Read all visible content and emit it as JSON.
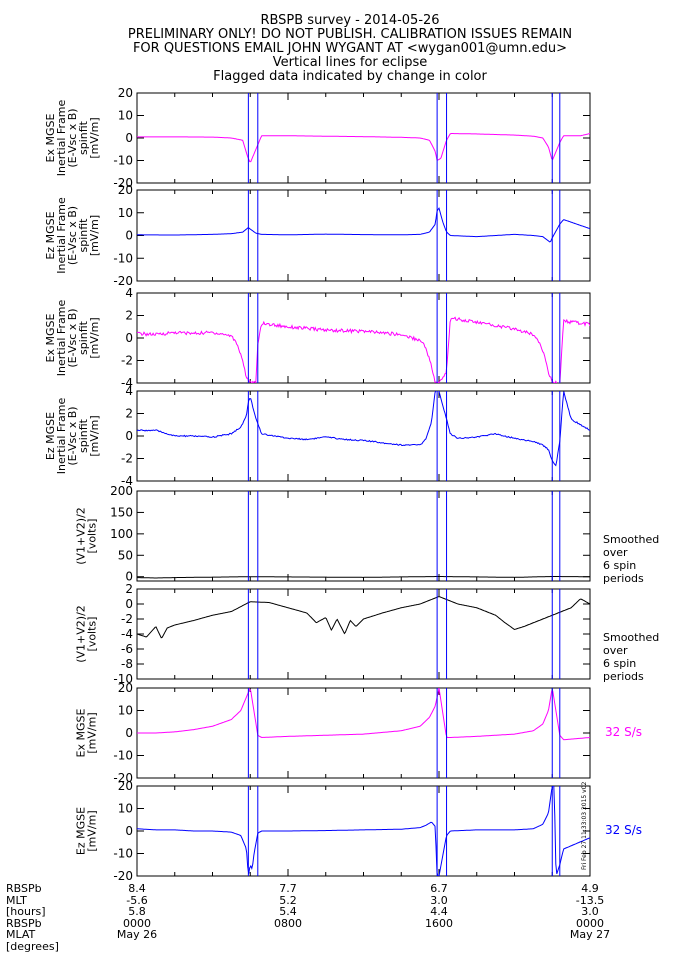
{
  "header": {
    "lines": [
      "RBSPB survey - 2014-05-26",
      "PRELIMINARY ONLY! DO NOT PUBLISH. CALIBRATION ISSUES REMAIN",
      "FOR QUESTIONS EMAIL JOHN WYGANT AT <wygan001@umn.edu>",
      "Vertical lines for eclipse",
      "Flagged data indicated by change in color"
    ]
  },
  "colors": {
    "magenta": "#ff00ff",
    "blue": "#0000ff",
    "black": "#000000",
    "eclipse": "#0000ff"
  },
  "eclipse_hours": [
    5.9,
    6.4,
    15.9,
    16.4,
    22.0,
    22.4
  ],
  "chart_data": [
    {
      "type": "line",
      "ylabel": [
        "Ex MGSE",
        "Inertial Frame",
        "(E-Vsc x B)",
        "spinfit",
        "[mV/m]"
      ],
      "ylim": [
        -20,
        20
      ],
      "yticks": [
        "20",
        "10",
        "0",
        "-10",
        "-20"
      ],
      "ytick_values": [
        20,
        10,
        0,
        -10,
        -20
      ],
      "color": "magenta",
      "series": [
        {
          "x": [
            0,
            2,
            4,
            5,
            5.6,
            5.85,
            6,
            6.4,
            6.6,
            8,
            10,
            12,
            14,
            15,
            15.5,
            15.8,
            15.9,
            16.1,
            16.4,
            16.6,
            18,
            20,
            21,
            21.5,
            21.8,
            22,
            22.4,
            22.6,
            23.5,
            24
          ],
          "values": [
            0.5,
            0.5,
            0.4,
            0,
            -1,
            -8,
            -11,
            -3,
            1,
            1,
            0.8,
            0.6,
            0.3,
            0,
            -1,
            -6,
            -10,
            -9,
            -1,
            2,
            1.8,
            1.3,
            0.8,
            0,
            -4,
            -10,
            -2,
            1,
            1,
            2
          ]
        }
      ]
    },
    {
      "type": "line",
      "ylabel": [
        "Ez MGSE",
        "Inertial Frame",
        "(E-Vsc x B)",
        "spinfit",
        "[mV/m]"
      ],
      "ylim": [
        -20,
        20
      ],
      "yticks": [
        "20",
        "10",
        "0",
        "-10",
        "-20"
      ],
      "ytick_values": [
        20,
        10,
        0,
        -10,
        -20
      ],
      "color": "blue",
      "series": [
        {
          "x": [
            0,
            2,
            4,
            5,
            5.6,
            5.9,
            6,
            6.3,
            6.6,
            8,
            10,
            12,
            14,
            15,
            15.5,
            15.8,
            15.9,
            16,
            16.2,
            16.4,
            16.6,
            18,
            20,
            21,
            21.5,
            21.9,
            22,
            22.4,
            22.6,
            24
          ],
          "values": [
            0.3,
            0.2,
            0.5,
            0.8,
            1.5,
            3.5,
            2.8,
            1,
            0.5,
            0.3,
            0.6,
            0.4,
            0.3,
            0.5,
            1.5,
            5,
            11,
            12,
            6,
            1.5,
            0,
            -0.5,
            0.5,
            0,
            -0.5,
            -3,
            -1,
            5,
            7,
            3
          ]
        }
      ]
    },
    {
      "type": "line",
      "ylabel": [
        "Ex MGSE",
        "Inertial Frame",
        "(E-Vsc x B)",
        "spinfit",
        "[mV/m]"
      ],
      "ylim": [
        -4,
        4
      ],
      "yticks": [
        "4",
        "2",
        "0",
        "-2",
        "-4"
      ],
      "ytick_values": [
        4,
        2,
        0,
        -2,
        -4
      ],
      "color": "magenta",
      "noise": 0.15,
      "series": [
        {
          "x": [
            0,
            1,
            2,
            3,
            4,
            5,
            5.3,
            5.6,
            5.8,
            6,
            6.3,
            6.4,
            6.6,
            8,
            10,
            12,
            14,
            15,
            15.3,
            15.6,
            15.8,
            16,
            16.4,
            16.6,
            18,
            20,
            21,
            21.3,
            21.6,
            21.8,
            22,
            22.4,
            22.6,
            24
          ],
          "values": [
            0.4,
            0.3,
            0.5,
            0.4,
            0.5,
            0.2,
            -0.5,
            -2,
            -3.5,
            -4,
            -4,
            -0.5,
            1.3,
            1,
            0.7,
            0.6,
            0.3,
            -0.2,
            -0.8,
            -2.5,
            -4,
            -4,
            -3,
            1.8,
            1.4,
            0.8,
            0.3,
            -0.3,
            -1.5,
            -3,
            -4,
            -4,
            1.5,
            1.2
          ]
        }
      ]
    },
    {
      "type": "line",
      "ylabel": [
        "Ez MGSE",
        "Inertial Frame",
        "(E-Vsc x B)",
        "spinfit",
        "[mV/m]"
      ],
      "ylim": [
        -4,
        4
      ],
      "yticks": [
        "4",
        "2",
        "0",
        "-2",
        "-4"
      ],
      "ytick_values": [
        4,
        2,
        0,
        -2,
        -4
      ],
      "color": "blue",
      "noise": 0.06,
      "series": [
        {
          "x": [
            0,
            1,
            2,
            3,
            4,
            5,
            5.5,
            5.8,
            5.9,
            6,
            6.3,
            6.6,
            8,
            9,
            10,
            11,
            12,
            13,
            14,
            15,
            15.3,
            15.6,
            15.8,
            15.9,
            16,
            16.4,
            16.6,
            17,
            18,
            19,
            20,
            21,
            21.5,
            21.8,
            22,
            22.2,
            22.4,
            22.6,
            23,
            24
          ],
          "values": [
            0.5,
            0.5,
            0,
            0,
            -0.1,
            0.2,
            0.8,
            1.8,
            3,
            3.5,
            1.5,
            0.2,
            -0.2,
            -0.3,
            -0.1,
            -0.3,
            -0.4,
            -0.6,
            -0.8,
            -0.8,
            -0.3,
            1.2,
            4,
            4,
            4,
            1.5,
            0.2,
            -0.2,
            -0.1,
            0.2,
            -0.2,
            -0.5,
            -0.8,
            -1.2,
            -2.2,
            -2.6,
            -0.5,
            4,
            1.5,
            0.5
          ]
        }
      ]
    },
    {
      "type": "line",
      "ylabel": [
        "(V1+V2)/2",
        "[volts]"
      ],
      "ylim": [
        -10,
        200
      ],
      "yticks": [
        "200",
        "150",
        "100",
        "50",
        "0"
      ],
      "ytick_values": [
        200,
        150,
        100,
        50,
        0
      ],
      "color": "black",
      "note": [
        "Smoothed",
        "over",
        "6 spin",
        "periods"
      ],
      "series": [
        {
          "x": [
            0,
            1,
            2,
            4,
            6,
            8,
            10,
            12,
            14,
            16,
            18,
            20,
            22,
            24
          ],
          "values": [
            -2,
            -3,
            -2,
            -1,
            0,
            -0.5,
            -1,
            -1.5,
            -0.5,
            0.5,
            -0.5,
            -1.5,
            0.5,
            0
          ]
        }
      ]
    },
    {
      "type": "line",
      "ylabel": [
        "(V1+V2)/2",
        "[volts]"
      ],
      "ylim": [
        -10,
        2
      ],
      "yticks": [
        "2",
        "0",
        "-2",
        "-4",
        "-6",
        "-8",
        "-10"
      ],
      "ytick_values": [
        2,
        0,
        -2,
        -4,
        -6,
        -8,
        -10
      ],
      "color": "black",
      "note": [
        "Smoothed",
        "over",
        "6 spin",
        "periods"
      ],
      "series": [
        {
          "x": [
            0,
            0.5,
            1,
            1.3,
            1.6,
            2,
            2.5,
            3,
            4,
            5,
            6,
            7,
            8,
            9,
            9.5,
            10,
            10.3,
            10.6,
            11,
            11.3,
            11.6,
            12,
            12.5,
            13,
            14,
            15,
            16,
            17,
            18,
            19,
            19.5,
            20,
            20.5,
            21,
            22,
            23,
            23.5,
            24
          ],
          "values": [
            -4,
            -4.4,
            -3,
            -4.6,
            -3.2,
            -2.8,
            -2.5,
            -2.2,
            -1.5,
            -1,
            0.3,
            0.2,
            -0.5,
            -1.2,
            -2.5,
            -1.8,
            -3.5,
            -2,
            -4,
            -2.2,
            -3,
            -2,
            -1.6,
            -1.2,
            -0.5,
            0,
            1,
            0,
            -0.5,
            -1.5,
            -2.5,
            -3.4,
            -3,
            -2.5,
            -1.5,
            -0.5,
            0.7,
            0
          ]
        }
      ]
    },
    {
      "type": "line",
      "ylabel": [
        "Ex MGSE",
        "[mV/m]"
      ],
      "ylim": [
        -20,
        20
      ],
      "yticks": [
        "20",
        "10",
        "0",
        "-10",
        "-20"
      ],
      "ytick_values": [
        20,
        10,
        0,
        -10,
        -20
      ],
      "color": "magenta",
      "rate_label": "32 S/s",
      "series": [
        {
          "x": [
            0,
            1,
            2,
            3,
            4,
            5,
            5.5,
            5.8,
            6,
            6.4,
            6.6,
            8,
            10,
            12,
            14,
            15,
            15.5,
            15.8,
            16,
            16.4,
            16.6,
            18,
            20,
            21,
            21.5,
            21.8,
            22,
            22.4,
            22.6,
            24
          ],
          "values": [
            0,
            0,
            0.5,
            1.5,
            3,
            6,
            10,
            16,
            20,
            -1,
            -2,
            -1.5,
            -1,
            -0.5,
            1,
            3,
            7,
            12,
            20,
            -2,
            -2,
            -1.5,
            -0.5,
            1,
            4,
            10,
            20,
            -1,
            -3,
            -2
          ]
        }
      ]
    },
    {
      "type": "line",
      "ylabel": [
        "Ez MGSE",
        "[mV/m]"
      ],
      "ylim": [
        -20,
        20
      ],
      "yticks": [
        "20",
        "10",
        "0",
        "-10",
        "-20"
      ],
      "ytick_values": [
        20,
        10,
        0,
        -10,
        -20
      ],
      "color": "blue",
      "rate_label": "32 S/s",
      "series": [
        {
          "x": [
            0,
            1,
            2,
            3,
            4,
            5,
            5.5,
            5.8,
            5.9,
            6,
            6.1,
            6.2,
            6.4,
            6.6,
            8,
            10,
            12,
            14,
            15,
            15.3,
            15.6,
            15.8,
            15.9,
            16,
            16.4,
            16.6,
            18,
            20,
            21,
            21.5,
            21.8,
            22,
            22.1,
            22.2,
            22.4,
            22.6,
            24
          ],
          "values": [
            1,
            0.5,
            0.5,
            0,
            0,
            -0.5,
            -2,
            -8,
            -20,
            -15,
            -17,
            -10,
            -1,
            0,
            0,
            0.2,
            0.5,
            0.8,
            1.5,
            2.5,
            4,
            2,
            -20,
            -20,
            -2,
            0,
            0.5,
            0.5,
            1,
            3,
            8,
            20,
            20,
            -20,
            -15,
            -8,
            -3
          ]
        }
      ]
    }
  ],
  "ephemeris": {
    "row_labels": [
      "RBSPb",
      "MLT",
      "[hours]",
      "RBSPb",
      "MLAT",
      "[degrees]"
    ],
    "columns": [
      {
        "hour": 0,
        "values": [
          "8.4",
          "-5.6",
          "5.8",
          "0000",
          "May 26"
        ]
      },
      {
        "hour": 8,
        "values": [
          "7.7",
          "5.2",
          "5.4",
          "0800",
          ""
        ]
      },
      {
        "hour": 16,
        "values": [
          "6.7",
          "3.0",
          "4.4",
          "1600",
          ""
        ]
      },
      {
        "hour": 24,
        "values": [
          "4.9",
          "-13.5",
          "3.0",
          "0000",
          "May 27"
        ]
      }
    ]
  },
  "stamp": "Fri Feb 27 11:33:03 2015 v02"
}
